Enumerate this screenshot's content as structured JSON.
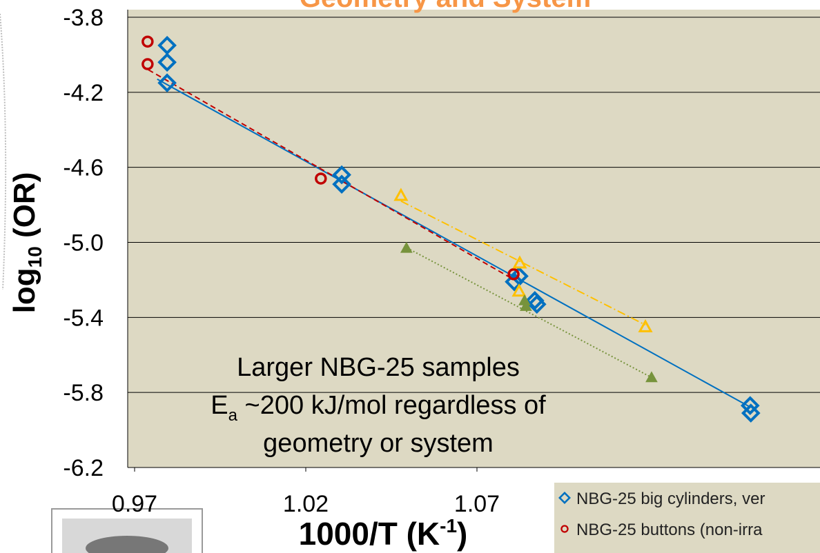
{
  "chart_data": {
    "type": "scatter",
    "title": "Geometry and System",
    "x_label": {
      "main": "1000/T (K",
      "sup": "-1",
      "end": ")"
    },
    "y_label": {
      "main": "log",
      "sub": "10",
      "end": " (OR)"
    },
    "annotation": {
      "line1": "Larger NBG-25 samples",
      "e": "E",
      "a": "a",
      "line2": " ~200 kJ/mol regardless of",
      "line3": "geometry or system"
    },
    "xlim": [
      0.968,
      1.17
    ],
    "xticks": [
      0.97,
      1.02,
      1.07
    ],
    "ylim": [
      -6.2,
      -3.8
    ],
    "yticks": [
      -6.2,
      -5.8,
      -5.4,
      {
        "value": -5.0,
        "label": "-5.0"
      },
      -4.6,
      -4.2,
      -3.8
    ],
    "grid": true,
    "legend": "bottom-right",
    "series": [
      {
        "name": "NBG-25 big cylinders, ver",
        "marker": "diamond",
        "color": "#0070c0",
        "x": [
          0.9795,
          0.9795,
          0.9795,
          1.0305,
          1.0305,
          1.0823,
          1.0809,
          1.0869,
          1.0875,
          1.1498,
          1.15
        ],
        "values": [
          -3.95,
          -4.04,
          -4.15,
          -4.64,
          -4.69,
          -5.18,
          -5.21,
          -5.31,
          -5.33,
          -5.87,
          -5.91
        ],
        "trend": {
          "x": [
            0.9766,
            1.15
          ],
          "y": [
            -4.13,
            -5.88
          ],
          "dash": "none"
        }
      },
      {
        "name": "NBG-25 buttons (non-irra",
        "marker": "circle",
        "color": "#c00000",
        "x": [
          0.9738,
          0.9738,
          1.0244,
          1.0807
        ],
        "values": [
          -3.93,
          -4.05,
          -4.66,
          -5.17
        ],
        "trend": {
          "x": [
            0.974,
            1.0809
          ],
          "y": [
            -4.08,
            -5.2
          ],
          "dash": "8 5"
        }
      },
      {
        "marker": "triangle-open",
        "color": "#ffc000",
        "x": [
          1.0478,
          1.0825,
          1.0823,
          1.1192
        ],
        "values": [
          -4.75,
          -5.11,
          -5.26,
          -5.45
        ],
        "trend": {
          "x": [
            1.0478,
            1.1192
          ],
          "y": [
            -4.78,
            -5.44
          ],
          "dash": "12 4 2 4"
        }
      },
      {
        "marker": "triangle",
        "color": "#77933c",
        "x": [
          1.0494,
          1.0839,
          1.0843,
          1.121
        ],
        "values": [
          -5.03,
          -5.31,
          -5.34,
          -5.72
        ],
        "trend": {
          "x": [
            1.0496,
            1.121
          ],
          "y": [
            -5.03,
            -5.72
          ],
          "dash": "2 3"
        }
      }
    ]
  }
}
